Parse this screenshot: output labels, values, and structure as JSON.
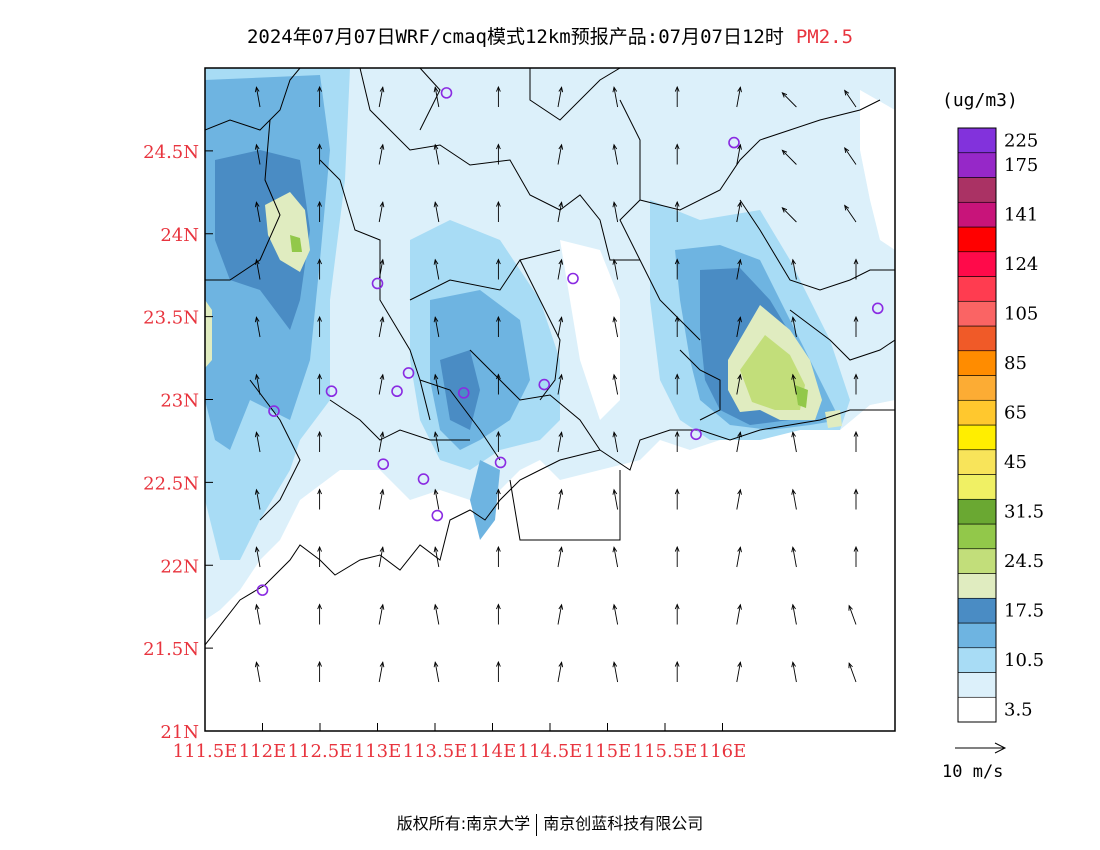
{
  "title": {
    "text": "2024年07月07日WRF/cmaq模式12km预报产品:07月07日12时",
    "product": "PM2.5"
  },
  "legend": {
    "unit": "(ug/m3)",
    "bins": [
      {
        "color": "#ffffff",
        "label": "3.5"
      },
      {
        "color": "#dcf0fa",
        "label": ""
      },
      {
        "color": "#a8dcf5",
        "label": "10.5"
      },
      {
        "color": "#6eb4e1",
        "label": ""
      },
      {
        "color": "#4a8cc4",
        "label": "17.5"
      },
      {
        "color": "#e0ecc0",
        "label": ""
      },
      {
        "color": "#c2de7a",
        "label": "24.5"
      },
      {
        "color": "#92c84a",
        "label": ""
      },
      {
        "color": "#6aa832",
        "label": "31.5"
      },
      {
        "color": "#f0f064",
        "label": ""
      },
      {
        "color": "#f8e45a",
        "label": "45"
      },
      {
        "color": "#ffee00",
        "label": ""
      },
      {
        "color": "#ffc82e",
        "label": "65"
      },
      {
        "color": "#fcac34",
        "label": ""
      },
      {
        "color": "#ff8c00",
        "label": "85"
      },
      {
        "color": "#f05a28",
        "label": ""
      },
      {
        "color": "#fa6464",
        "label": "105"
      },
      {
        "color": "#ff3c50",
        "label": ""
      },
      {
        "color": "#ff0a4a",
        "label": "124"
      },
      {
        "color": "#ff0000",
        "label": ""
      },
      {
        "color": "#c8147a",
        "label": "141"
      },
      {
        "color": "#aa3264",
        "label": ""
      },
      {
        "color": "#9628c8",
        "label": "175"
      },
      {
        "color": "#8232dc",
        "label": "225"
      }
    ]
  },
  "axes": {
    "lon_ticks": [
      "111.5E",
      "112E",
      "112.5E",
      "113E",
      "113.5E",
      "114E",
      "114.5E",
      "115E",
      "115.5E",
      "116E"
    ],
    "lat_ticks": [
      "21N",
      "21.5N",
      "22N",
      "22.5N",
      "23N",
      "23.5N",
      "24N",
      "24.5N"
    ],
    "lon_range": [
      111.5,
      117.5
    ],
    "lat_range": [
      21.0,
      25.0
    ]
  },
  "vector_reference": {
    "label": "10 m/s"
  },
  "stations": [
    {
      "lon": 113.6,
      "lat": 24.85
    },
    {
      "lon": 116.1,
      "lat": 24.55
    },
    {
      "lon": 113.0,
      "lat": 23.7
    },
    {
      "lon": 114.7,
      "lat": 23.73
    },
    {
      "lon": 117.35,
      "lat": 23.55
    },
    {
      "lon": 113.27,
      "lat": 23.16
    },
    {
      "lon": 113.17,
      "lat": 23.05
    },
    {
      "lon": 113.75,
      "lat": 23.04
    },
    {
      "lon": 114.45,
      "lat": 23.09
    },
    {
      "lon": 112.6,
      "lat": 23.05
    },
    {
      "lon": 112.1,
      "lat": 22.93
    },
    {
      "lon": 115.77,
      "lat": 22.79
    },
    {
      "lon": 113.05,
      "lat": 22.61
    },
    {
      "lon": 113.4,
      "lat": 22.52
    },
    {
      "lon": 114.07,
      "lat": 22.62
    },
    {
      "lon": 113.52,
      "lat": 22.3
    },
    {
      "lon": 112.0,
      "lat": 21.85
    }
  ],
  "footer": {
    "left": "版权所有:南京大学",
    "right": "南京创蓝科技有限公司"
  },
  "colors": {
    "accent": "#e8343e",
    "station": "#8a2be2"
  }
}
